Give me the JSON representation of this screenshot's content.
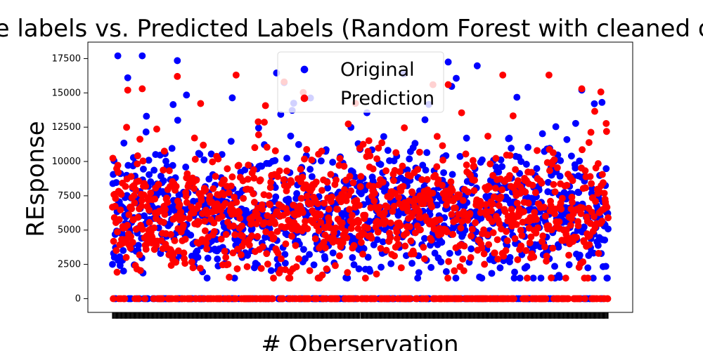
{
  "chart_data": {
    "type": "scatter",
    "title": "True labels vs. Predicted Labels (Random Forest with cleaned data)",
    "xlabel": "# Oberservation",
    "ylabel": "REsponse",
    "ylim": [
      -1000,
      18700
    ],
    "yticks": [
      0,
      2500,
      5000,
      7500,
      10000,
      12500,
      15000,
      17500
    ],
    "ytick_labels": [
      "0",
      "2500",
      "5000",
      "7500",
      "10000",
      "12500",
      "15000",
      "17500"
    ],
    "x_ticks_illegible": true,
    "observation_count": 1300,
    "legend_position": "top-center",
    "series": [
      {
        "name": "Original",
        "color": "#0000ff",
        "zero_share": 0.18,
        "center": 6200,
        "spread": 2200,
        "min": 1500,
        "max": 17700,
        "outliers": [
          {
            "index": 78,
            "value": 17700
          },
          {
            "index": 170,
            "value": 17350
          },
          {
            "index": 880,
            "value": 17250
          },
          {
            "index": 430,
            "value": 16450
          },
          {
            "index": 450,
            "value": 15750
          },
          {
            "index": 40,
            "value": 16100
          },
          {
            "index": 1230,
            "value": 15200
          }
        ]
      },
      {
        "name": "Prediction",
        "color": "#ff0000",
        "zero_share": 0.18,
        "center": 6300,
        "spread": 2050,
        "min": 1500,
        "max": 16300,
        "outliers": [
          {
            "index": 450,
            "value": 15800
          },
          {
            "index": 170,
            "value": 16200
          },
          {
            "index": 880,
            "value": 15600
          },
          {
            "index": 78,
            "value": 15300
          },
          {
            "index": 40,
            "value": 15200
          },
          {
            "index": 1230,
            "value": 15300
          }
        ]
      }
    ]
  }
}
